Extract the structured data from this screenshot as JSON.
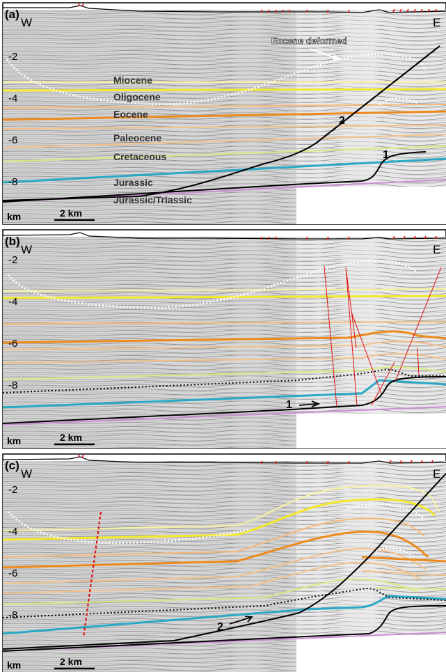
{
  "panels": [
    {
      "label": "(a)",
      "west": "W",
      "east": "E",
      "depth_ticks": [
        "-2",
        "-4",
        "-6",
        "-8"
      ],
      "unit": "km",
      "scale": "2 km",
      "annotation": "Eocene deformed",
      "formations": [
        "Miocene",
        "Oligocene",
        "Eocene",
        "Paleocene",
        "Cretaceous",
        "Jurassic",
        "Jurassic/Triassic"
      ],
      "fault_labels": [
        "1",
        "2"
      ]
    },
    {
      "label": "(b)",
      "west": "W",
      "east": "E",
      "depth_ticks": [
        "-2",
        "-4",
        "-6",
        "-8"
      ],
      "unit": "km",
      "scale": "2 km",
      "fault_labels": [
        "1"
      ]
    },
    {
      "label": "(c)",
      "west": "W",
      "east": "E",
      "depth_ticks": [
        "-2",
        "-4",
        "-6",
        "-8"
      ],
      "unit": "km",
      "scale": "2 km",
      "fault_labels": [
        "2"
      ]
    }
  ],
  "colors": {
    "miocene": "#f6f2a0",
    "oligocene": "#f3e82a",
    "eocene": "#ee8a1c",
    "eocene_light": "#f3b97a",
    "paleocene": "#f3c08a",
    "cretaceous": "#d6ea80",
    "jurassic": "#29a9c6",
    "triassic": "#c98ed2",
    "fault": "#000000",
    "red_fault": "#e01010"
  }
}
